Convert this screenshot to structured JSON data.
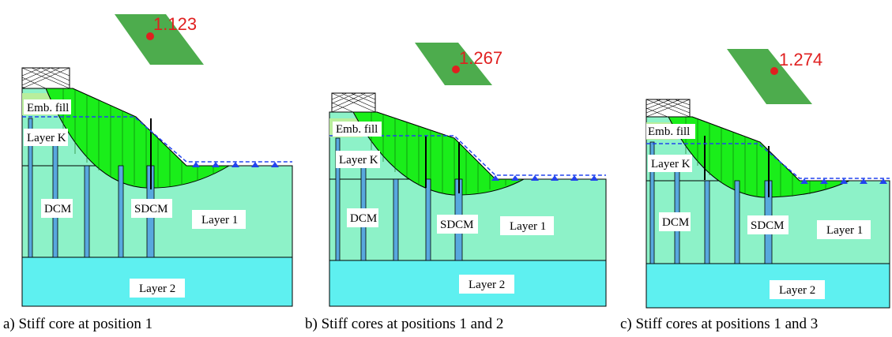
{
  "colors": {
    "fill_layer": "#8df2c8",
    "layer2": "#5ef0f0",
    "emb_fill": "#b9ee9c",
    "slip": "#1aee1a",
    "column": "#58a8de",
    "water": "#2244ee",
    "fos_red": "#e02020"
  },
  "panels": [
    {
      "id": "a",
      "caption": "a) Stiff core at position 1",
      "fos": "1.123",
      "labels": {
        "emb": "Emb. fill",
        "layer_k": "Layer K",
        "dcm": "DCM",
        "sdcm": "SDCM",
        "layer1": "Layer 1",
        "layer2": "Layer 2"
      }
    },
    {
      "id": "b",
      "caption": "b) Stiff cores at positions 1 and 2",
      "fos": "1.267",
      "labels": {
        "emb": "Emb. fill",
        "layer_k": "Layer K",
        "dcm": "DCM",
        "sdcm": "SDCM",
        "layer1": "Layer 1",
        "layer2": "Layer 2"
      }
    },
    {
      "id": "c",
      "caption": "c) Stiff cores at positions 1 and 3",
      "fos": "1.274",
      "labels": {
        "emb": "Emb. fill",
        "layer_k": "Layer K",
        "dcm": "DCM",
        "sdcm": "SDCM",
        "layer1": "Layer 1",
        "layer2": "Layer 2"
      }
    }
  ]
}
